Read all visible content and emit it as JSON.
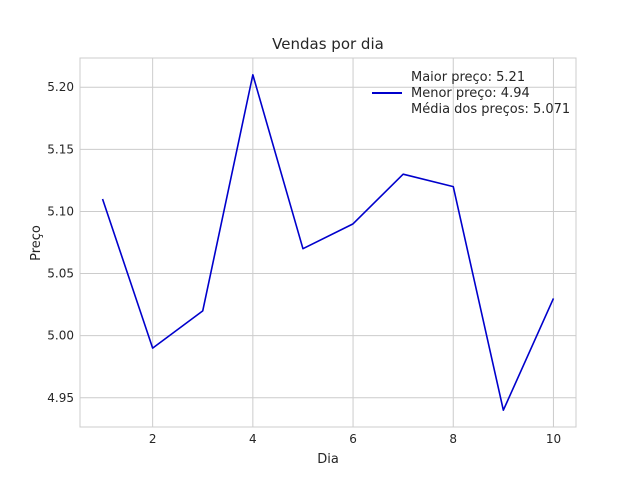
{
  "chart_data": {
    "type": "line",
    "title": "Vendas por dia",
    "xlabel": "Dia",
    "ylabel": "Preço",
    "x": [
      1,
      2,
      3,
      4,
      5,
      6,
      7,
      8,
      9,
      10
    ],
    "series": [
      {
        "name": "Maior preço: 5.21\nMenor preço: 4.94\nMédia dos preços: 5.071",
        "values": [
          5.11,
          4.99,
          5.02,
          5.21,
          5.07,
          5.09,
          5.13,
          5.12,
          4.94,
          5.03
        ],
        "color": "#0000cc"
      }
    ],
    "legend_lines": [
      "Maior preço: 5.21",
      "Menor preço: 4.94",
      "Média dos preços: 5.071"
    ],
    "xlim": [
      0.55,
      10.45
    ],
    "ylim": [
      4.9265,
      5.2235
    ],
    "xticks": [
      2,
      4,
      6,
      8,
      10
    ],
    "yticks": [
      4.95,
      5.0,
      5.05,
      5.1,
      5.15,
      5.2
    ],
    "ytick_labels": [
      "4.95",
      "5.00",
      "5.05",
      "5.10",
      "5.15",
      "5.20"
    ],
    "grid": true,
    "legend_position": "upper-right",
    "colors": {
      "grid": "#cccccc",
      "frame": "#cccccc",
      "line": "#0000cc"
    }
  }
}
